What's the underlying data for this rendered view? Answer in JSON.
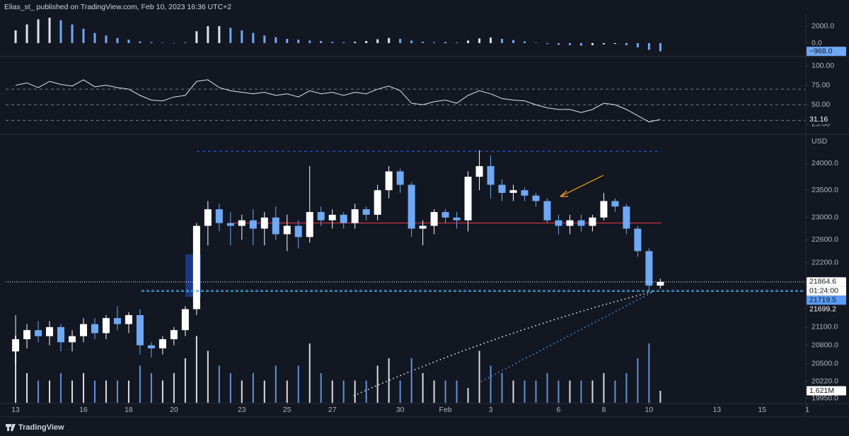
{
  "header": {
    "text": "Elias_st_ published on TradingView.com, Feb 10, 2023 16:36 UTC+2"
  },
  "footer": {
    "brand": "TradingView"
  },
  "chart_data": [
    {
      "type": "bar",
      "ylim": [
        -1420,
        3250
      ],
      "yticks": [
        {
          "value": 2000,
          "label": "2000.0"
        },
        {
          "value": 0,
          "label": "0.0"
        }
      ],
      "colors": {
        "up": "#e0e3eb",
        "down": "#6fa8f5"
      },
      "values": [
        1500,
        2200,
        2800,
        3000,
        2700,
        2200,
        1700,
        1200,
        900,
        600,
        400,
        200,
        100,
        50,
        0,
        50,
        1400,
        2000,
        2000,
        1800,
        1500,
        1200,
        900,
        700,
        500,
        400,
        300,
        250,
        150,
        100,
        150,
        250,
        450,
        600,
        500,
        300,
        150,
        100,
        100,
        80,
        300,
        550,
        650,
        500,
        350,
        200,
        50,
        -100,
        -200,
        -250,
        -300,
        -250,
        -150,
        -100,
        -250,
        -500,
        -800,
        -968
      ],
      "last_value_label": "−968.0"
    },
    {
      "type": "line",
      "ylim": [
        14,
        110
      ],
      "yticks": [
        {
          "value": 100,
          "label": "100.00"
        },
        {
          "value": 75,
          "label": "75.00"
        },
        {
          "value": 50,
          "label": "50.00"
        },
        {
          "value": 25,
          "label": "25.00"
        }
      ],
      "bands": [
        70,
        50,
        30
      ],
      "color": "#e0e3eb",
      "values": [
        75,
        78,
        72,
        80,
        76,
        74,
        82,
        73,
        75,
        72,
        70,
        62,
        56,
        55,
        60,
        62,
        80,
        82,
        72,
        68,
        66,
        64,
        66,
        62,
        64,
        60,
        68,
        64,
        66,
        62,
        66,
        64,
        70,
        74,
        68,
        52,
        50,
        54,
        56,
        52,
        62,
        68,
        64,
        58,
        56,
        55,
        50,
        46,
        44,
        44,
        40,
        44,
        52,
        50,
        44,
        36,
        28,
        31.16
      ]
    },
    {
      "type": "candlestick",
      "log": true,
      "currency": "USD",
      "ylim": [
        19880,
        24530
      ],
      "xlim": [
        12.56,
        47.9
      ],
      "yticks": [
        {
          "value": 24000,
          "label": "24000.0"
        },
        {
          "value": 23500,
          "label": "23500.0"
        },
        {
          "value": 23000,
          "label": "23000.0"
        },
        {
          "value": 22600,
          "label": "22600.0"
        },
        {
          "value": 22200,
          "label": "22200.0"
        },
        {
          "value": 21100,
          "label": "21100.0"
        },
        {
          "value": 20800,
          "label": "20800.0"
        },
        {
          "value": 20500,
          "label": "20500.0"
        },
        {
          "value": 20220,
          "label": "20220.0"
        },
        {
          "value": 19950,
          "label": "19950.0"
        }
      ],
      "xticks": [
        13,
        16,
        18,
        20,
        23,
        25,
        27,
        30,
        {
          "value": 32,
          "label": "Feb"
        },
        {
          "value": 34,
          "label": "3"
        },
        {
          "value": 37,
          "label": "6"
        },
        {
          "value": 39,
          "label": "8"
        },
        {
          "value": 41,
          "label": "10"
        },
        {
          "value": 44,
          "label": "13"
        },
        {
          "value": 46,
          "label": "15"
        },
        {
          "value": 48,
          "label": "1"
        }
      ],
      "colors": {
        "up": "#ffffff",
        "down": "#6fa8f5"
      },
      "x": [
        13,
        13.5,
        14,
        14.5,
        15,
        15.5,
        16,
        16.5,
        17,
        17.5,
        18,
        18.5,
        19,
        19.5,
        20,
        20.5,
        21,
        21.5,
        22,
        22.5,
        23,
        23.5,
        24,
        24.5,
        25,
        25.5,
        26,
        26.5,
        27,
        27.5,
        28,
        28.5,
        29,
        29.5,
        30,
        30.5,
        31,
        31.5,
        32,
        32.5,
        33,
        33.5,
        34,
        34.5,
        35,
        35.5,
        36,
        36.5,
        37,
        37.5,
        38,
        38.5,
        39,
        39.5,
        40,
        40.5,
        41,
        41.5
      ],
      "open": [
        20700,
        20900,
        21050,
        20950,
        21100,
        20850,
        20950,
        21150,
        21000,
        21250,
        21150,
        21300,
        20800,
        20750,
        20900,
        21050,
        21400,
        22850,
        23150,
        22900,
        22850,
        22950,
        22800,
        23000,
        22700,
        22850,
        22650,
        23100,
        22950,
        23050,
        22900,
        23150,
        23050,
        23500,
        23850,
        23600,
        22800,
        22850,
        23100,
        23000,
        22950,
        23750,
        23950,
        23600,
        23450,
        23500,
        23400,
        23300,
        22950,
        22850,
        22950,
        22850,
        23000,
        23300,
        23200,
        22800,
        22400,
        21800
      ],
      "high": [
        21300,
        21150,
        21200,
        21200,
        21150,
        21050,
        21250,
        21250,
        21300,
        21450,
        21350,
        21400,
        20850,
        20950,
        21100,
        21450,
        22900,
        23300,
        23250,
        23100,
        23050,
        23150,
        23100,
        23200,
        23050,
        22950,
        23950,
        23200,
        23150,
        23100,
        23250,
        23200,
        23600,
        23950,
        23900,
        23650,
        22950,
        23150,
        23150,
        23100,
        23850,
        24250,
        24150,
        23700,
        23600,
        23550,
        23450,
        23350,
        23050,
        23050,
        23050,
        23050,
        23450,
        23350,
        23250,
        22850,
        22450,
        21920
      ],
      "low": [
        20500,
        20750,
        20850,
        20800,
        20700,
        20700,
        20850,
        20900,
        20900,
        21050,
        21000,
        20650,
        20600,
        20650,
        20800,
        20950,
        21300,
        22500,
        22750,
        22500,
        22600,
        22500,
        22500,
        22600,
        22400,
        22450,
        22550,
        22850,
        22800,
        22800,
        22800,
        22950,
        22950,
        23350,
        23450,
        22650,
        22500,
        22700,
        22900,
        22800,
        22750,
        23500,
        23350,
        23300,
        23300,
        23300,
        23200,
        22900,
        22700,
        22700,
        22750,
        22750,
        22950,
        23100,
        22700,
        22300,
        21700,
        21750
      ],
      "close": [
        20900,
        21050,
        20950,
        21100,
        20850,
        20950,
        21150,
        21000,
        21250,
        21150,
        21300,
        20800,
        20750,
        20900,
        21050,
        21400,
        22850,
        23150,
        22900,
        22850,
        22950,
        22800,
        23000,
        22700,
        22850,
        22650,
        23100,
        22950,
        23050,
        22900,
        23150,
        23050,
        23500,
        23850,
        23600,
        22800,
        22850,
        23100,
        23000,
        22950,
        23750,
        23950,
        23600,
        23450,
        23500,
        23400,
        23300,
        22950,
        22850,
        22950,
        22850,
        23000,
        23300,
        23200,
        22800,
        22400,
        21800,
        21864.6
      ],
      "countdown": "01:24:00",
      "volume": {
        "ylim": [
          0,
          36000000
        ],
        "last_value_label": "1.621M",
        "values": [
          9000000,
          4000000,
          3000000,
          3000000,
          4000000,
          3000000,
          4000000,
          3000000,
          3000000,
          3000000,
          3000000,
          5000000,
          4000000,
          3000000,
          4000000,
          6000000,
          9000000,
          7000000,
          5000000,
          4000000,
          3000000,
          4000000,
          3000000,
          5000000,
          3000000,
          5000000,
          8000000,
          4000000,
          3000000,
          3000000,
          3000000,
          3000000,
          5000000,
          6000000,
          3000000,
          6000000,
          4000000,
          3000000,
          3000000,
          3000000,
          2000000,
          7000000,
          5000000,
          4000000,
          3000000,
          3000000,
          3000000,
          4000000,
          3000000,
          3000000,
          3000000,
          3000000,
          4000000,
          3000000,
          4000000,
          6000000,
          8000000,
          1621000
        ]
      },
      "hlines": [
        {
          "value": 22900,
          "color": "#f23645"
        },
        {
          "value": 24230,
          "color": "#2962ff"
        }
      ],
      "levels": [
        {
          "value": 21719.5,
          "color": "#5b9cf6"
        },
        {
          "value": 21699.2,
          "color": "#26c6da"
        }
      ]
    }
  ]
}
